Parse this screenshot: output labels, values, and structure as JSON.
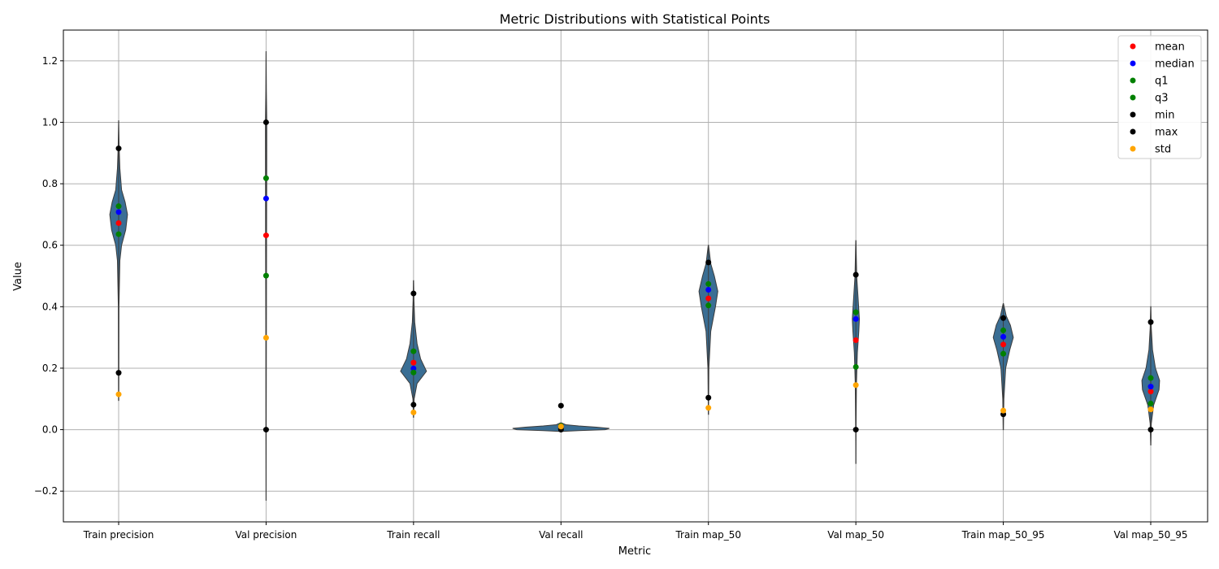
{
  "chart_data": {
    "type": "violin",
    "title": "Metric Distributions with Statistical Points",
    "xlabel": "Metric",
    "ylabel": "Value",
    "ylim": [
      -0.3,
      1.3
    ],
    "yticks": [
      -0.2,
      0.0,
      0.2,
      0.4,
      0.6,
      0.8,
      1.0,
      1.2
    ],
    "ytick_labels": [
      "−0.2",
      "0.0",
      "0.2",
      "0.4",
      "0.6",
      "0.8",
      "1.0",
      "1.2"
    ],
    "grid": true,
    "legend_position": "top-right",
    "categories": [
      "Train precision",
      "Val precision",
      "Train recall",
      "Val recall",
      "Train map_50",
      "Val map_50",
      "Train map_50_95",
      "Val map_50_95"
    ],
    "stats_order": [
      "mean",
      "median",
      "q1",
      "q3",
      "min",
      "max",
      "std"
    ],
    "stat_colors": {
      "mean": "#ff0000",
      "median": "#0000ff",
      "q1": "#008000",
      "q3": "#008000",
      "min": "#000000",
      "max": "#000000",
      "std": "#ffa500"
    },
    "violin_color": "#3a6e94",
    "stats": [
      {
        "mean": 0.672,
        "median": 0.708,
        "q1": 0.636,
        "q3": 0.727,
        "min": 0.185,
        "max": 0.915,
        "std": 0.115
      },
      {
        "mean": 0.632,
        "median": 0.752,
        "q1": 0.501,
        "q3": 0.818,
        "min": 0.0,
        "max": 1.0,
        "std": 0.299
      },
      {
        "mean": 0.218,
        "median": 0.199,
        "q1": 0.186,
        "q3": 0.255,
        "min": 0.081,
        "max": 0.443,
        "std": 0.056
      },
      {
        "mean": 0.008,
        "median": 0.006,
        "q1": 0.003,
        "q3": 0.012,
        "min": 0.0,
        "max": 0.078,
        "std": 0.01
      },
      {
        "mean": 0.427,
        "median": 0.455,
        "q1": 0.404,
        "q3": 0.474,
        "min": 0.104,
        "max": 0.544,
        "std": 0.071
      },
      {
        "mean": 0.291,
        "median": 0.36,
        "q1": 0.204,
        "q3": 0.382,
        "min": 0.0,
        "max": 0.504,
        "std": 0.145
      },
      {
        "mean": 0.277,
        "median": 0.302,
        "q1": 0.247,
        "q3": 0.323,
        "min": 0.05,
        "max": 0.363,
        "std": 0.062
      },
      {
        "mean": 0.124,
        "median": 0.14,
        "q1": 0.085,
        "q3": 0.168,
        "min": 0.0,
        "max": 0.35,
        "std": 0.066
      }
    ],
    "violins": [
      {
        "lo": 0.095,
        "hi": 1.005,
        "profile": [
          [
            0.095,
            0.003
          ],
          [
            0.2,
            0.004
          ],
          [
            0.4,
            0.006
          ],
          [
            0.55,
            0.02
          ],
          [
            0.6,
            0.05
          ],
          [
            0.65,
            0.12
          ],
          [
            0.7,
            0.15
          ],
          [
            0.74,
            0.11
          ],
          [
            0.78,
            0.05
          ],
          [
            0.85,
            0.02
          ],
          [
            0.92,
            0.008
          ],
          [
            1.005,
            0.002
          ]
        ]
      },
      {
        "lo": -0.23,
        "hi": 1.23,
        "profile": [
          [
            -0.23,
            0.001
          ],
          [
            0.0,
            0.003
          ],
          [
            0.3,
            0.005
          ],
          [
            0.6,
            0.008
          ],
          [
            0.8,
            0.01
          ],
          [
            1.0,
            0.012
          ],
          [
            1.1,
            0.005
          ],
          [
            1.23,
            0.001
          ]
        ]
      },
      {
        "lo": 0.04,
        "hi": 0.485,
        "profile": [
          [
            0.04,
            0.002
          ],
          [
            0.1,
            0.01
          ],
          [
            0.15,
            0.06
          ],
          [
            0.19,
            0.22
          ],
          [
            0.23,
            0.12
          ],
          [
            0.28,
            0.06
          ],
          [
            0.35,
            0.02
          ],
          [
            0.42,
            0.008
          ],
          [
            0.485,
            0.002
          ]
        ]
      },
      {
        "lo": -0.006,
        "hi": 0.022,
        "profile": [
          [
            -0.006,
            0.02
          ],
          [
            -0.003,
            0.3
          ],
          [
            0.0,
            0.75
          ],
          [
            0.004,
            0.82
          ],
          [
            0.008,
            0.6
          ],
          [
            0.012,
            0.3
          ],
          [
            0.016,
            0.08
          ],
          [
            0.022,
            0.01
          ]
        ]
      },
      {
        "lo": 0.05,
        "hi": 0.6,
        "profile": [
          [
            0.05,
            0.002
          ],
          [
            0.2,
            0.008
          ],
          [
            0.32,
            0.04
          ],
          [
            0.4,
            0.12
          ],
          [
            0.45,
            0.16
          ],
          [
            0.5,
            0.1
          ],
          [
            0.54,
            0.04
          ],
          [
            0.6,
            0.003
          ]
        ]
      },
      {
        "lo": -0.11,
        "hi": 0.615,
        "profile": [
          [
            -0.11,
            0.001
          ],
          [
            0.0,
            0.004
          ],
          [
            0.15,
            0.01
          ],
          [
            0.25,
            0.025
          ],
          [
            0.32,
            0.05
          ],
          [
            0.36,
            0.06
          ],
          [
            0.42,
            0.04
          ],
          [
            0.5,
            0.015
          ],
          [
            0.615,
            0.002
          ]
        ]
      },
      {
        "lo": 0.0,
        "hi": 0.41,
        "profile": [
          [
            0.0,
            0.002
          ],
          [
            0.1,
            0.01
          ],
          [
            0.2,
            0.04
          ],
          [
            0.26,
            0.11
          ],
          [
            0.3,
            0.17
          ],
          [
            0.34,
            0.12
          ],
          [
            0.37,
            0.05
          ],
          [
            0.41,
            0.003
          ]
        ]
      },
      {
        "lo": -0.05,
        "hi": 0.4,
        "profile": [
          [
            -0.05,
            0.002
          ],
          [
            0.02,
            0.01
          ],
          [
            0.08,
            0.05
          ],
          [
            0.13,
            0.14
          ],
          [
            0.16,
            0.15
          ],
          [
            0.2,
            0.08
          ],
          [
            0.26,
            0.03
          ],
          [
            0.33,
            0.01
          ],
          [
            0.4,
            0.002
          ]
        ]
      }
    ]
  }
}
